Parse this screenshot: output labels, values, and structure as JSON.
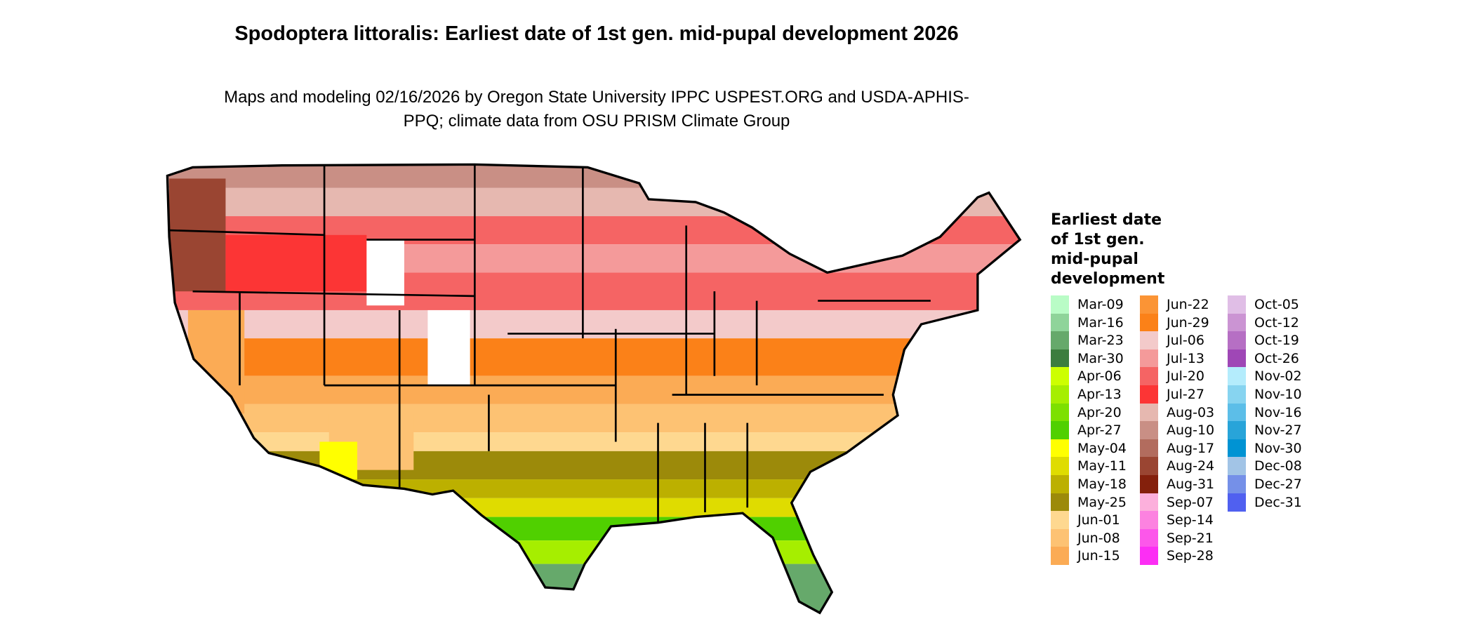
{
  "title": "Spodoptera littoralis: Earliest date of 1st gen. mid-pupal development 2026",
  "subtitle": "Maps and modeling 02/16/2026 by Oregon State University IPPC USPEST.ORG and USDA-APHIS-PPQ; climate data from OSU PRISM Climate Group",
  "legend": {
    "title": "Earliest date of 1st gen. mid-pupal development",
    "items": [
      {
        "label": "Mar-09",
        "color": "#b9fcc6"
      },
      {
        "label": "Mar-16",
        "color": "#8fd49a"
      },
      {
        "label": "Mar-23",
        "color": "#66a96b"
      },
      {
        "label": "Mar-30",
        "color": "#3c7d3e"
      },
      {
        "label": "Apr-06",
        "color": "#cdff00"
      },
      {
        "label": "Apr-13",
        "color": "#a6ee00"
      },
      {
        "label": "Apr-20",
        "color": "#7de000"
      },
      {
        "label": "Apr-27",
        "color": "#50d000"
      },
      {
        "label": "May-04",
        "color": "#ffff00"
      },
      {
        "label": "May-11",
        "color": "#dfdc00"
      },
      {
        "label": "May-18",
        "color": "#bcb000"
      },
      {
        "label": "May-25",
        "color": "#9c8a0a"
      },
      {
        "label": "Jun-01",
        "color": "#fed890"
      },
      {
        "label": "Jun-08",
        "color": "#fdc273"
      },
      {
        "label": "Jun-15",
        "color": "#fbab55"
      },
      {
        "label": "Jun-22",
        "color": "#fb9435"
      },
      {
        "label": "Jun-29",
        "color": "#fb8118"
      },
      {
        "label": "Jul-06",
        "color": "#f3caca"
      },
      {
        "label": "Jul-13",
        "color": "#f49a9a"
      },
      {
        "label": "Jul-20",
        "color": "#f56464"
      },
      {
        "label": "Jul-27",
        "color": "#fc3535"
      },
      {
        "label": "Aug-03",
        "color": "#e6b8b0"
      },
      {
        "label": "Aug-10",
        "color": "#c98f85"
      },
      {
        "label": "Aug-17",
        "color": "#b26c5e"
      },
      {
        "label": "Aug-24",
        "color": "#9a4532"
      },
      {
        "label": "Aug-31",
        "color": "#84200c"
      },
      {
        "label": "Sep-07",
        "color": "#fcb0dc"
      },
      {
        "label": "Sep-14",
        "color": "#fc82e0"
      },
      {
        "label": "Sep-21",
        "color": "#fc57ea"
      },
      {
        "label": "Sep-28",
        "color": "#fc2ef4"
      },
      {
        "label": "Oct-05",
        "color": "#e0bee6"
      },
      {
        "label": "Oct-12",
        "color": "#cb94d3"
      },
      {
        "label": "Oct-19",
        "color": "#b66fc4"
      },
      {
        "label": "Oct-26",
        "color": "#9f47b6"
      },
      {
        "label": "Nov-02",
        "color": "#b4ecfc"
      },
      {
        "label": "Nov-10",
        "color": "#87d4f0"
      },
      {
        "label": "Nov-16",
        "color": "#5cbee8"
      },
      {
        "label": "Nov-27",
        "color": "#28a4d9"
      },
      {
        "label": "Nov-30",
        "color": "#0093d3"
      },
      {
        "label": "Dec-08",
        "color": "#a2c4e6"
      },
      {
        "label": "Dec-27",
        "color": "#7590e8"
      },
      {
        "label": "Dec-31",
        "color": "#5060f0"
      }
    ]
  }
}
